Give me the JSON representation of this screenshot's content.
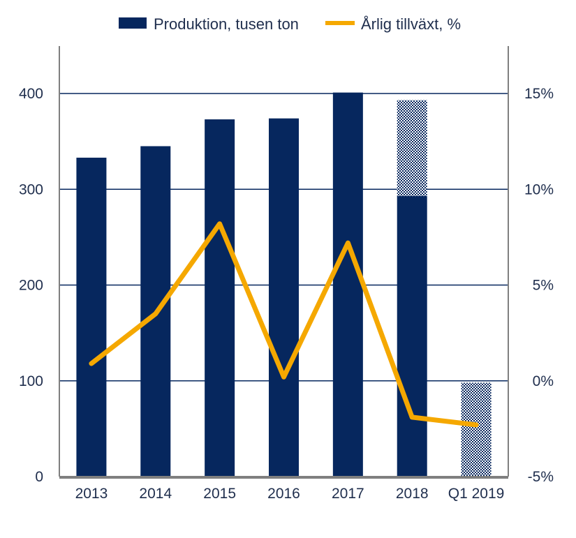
{
  "chart_data": {
    "type": "bar",
    "categories": [
      "2013",
      "2014",
      "2015",
      "2016",
      "2017",
      "2018",
      "Q1 2019"
    ],
    "series": [
      {
        "name": "Produktion, tusen ton",
        "type": "bar",
        "axis": "left",
        "values": [
          333,
          345,
          373,
          374,
          401,
          393,
          98
        ],
        "solid_portion": [
          333,
          345,
          373,
          374,
          401,
          293,
          0
        ],
        "patterned_portion": [
          0,
          0,
          0,
          0,
          0,
          100,
          98
        ],
        "color": "#06275e"
      },
      {
        "name": "Årlig tillväxt, %",
        "type": "line",
        "axis": "right",
        "values": [
          0.9,
          3.5,
          8.2,
          0.2,
          7.2,
          -1.9,
          -2.3
        ],
        "color": "#f5a800"
      }
    ],
    "y_left": {
      "ticks": [
        "0",
        "100",
        "200",
        "300",
        "400"
      ],
      "ylim": [
        0,
        400
      ]
    },
    "y_right": {
      "ticks": [
        "-5%",
        "0%",
        "5%",
        "10%",
        "15%"
      ],
      "ylim": [
        -5,
        15
      ]
    },
    "grid": true,
    "legend_position": "top"
  },
  "colors": {
    "bar": "#06275e",
    "line": "#f5a800",
    "grid": "#06275e",
    "axis": "#7f7f7f",
    "text": "#1f2e4d"
  }
}
